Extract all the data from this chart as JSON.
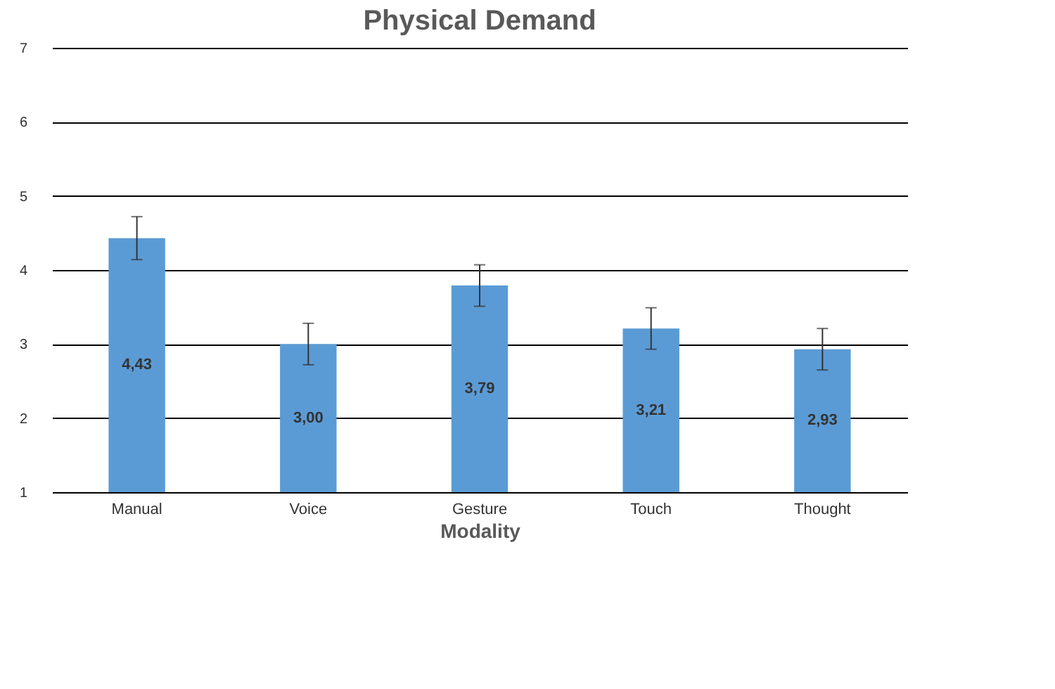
{
  "chart_data": {
    "type": "bar",
    "title": "Physical Demand",
    "xlabel": "Modality",
    "categories": [
      "Manual",
      "Voice",
      "Gesture",
      "Touch",
      "Thought"
    ],
    "values": [
      4.43,
      3.0,
      3.79,
      3.21,
      2.93
    ],
    "value_labels": [
      "4,43",
      "3,00",
      "3,79",
      "3,21",
      "2,93"
    ],
    "errors": [
      0.29,
      0.28,
      0.28,
      0.28,
      0.28
    ],
    "color": "#5b9bd5",
    "ylim": [
      1,
      7
    ],
    "yticks": [
      1,
      2,
      3,
      4,
      5,
      6,
      7
    ],
    "grid": "y"
  }
}
